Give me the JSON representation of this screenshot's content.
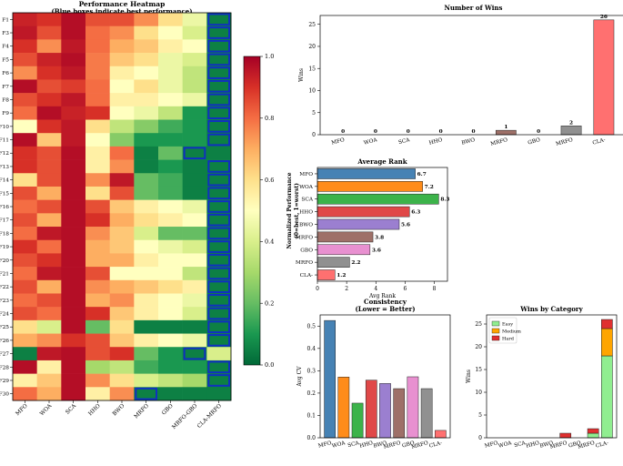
{
  "chart_data": [
    {
      "type": "heatmap",
      "title": "Performance Heatmap",
      "subtitle": "(Blue boxes indicate best performance)",
      "rows": [
        "F1",
        "F3",
        "F4",
        "F5",
        "F6",
        "F7",
        "F8",
        "F9",
        "F10",
        "F11",
        "F12",
        "F13",
        "F14",
        "F15",
        "F16",
        "F17",
        "F18",
        "F19",
        "F20",
        "F21",
        "F22",
        "F23",
        "F24",
        "F25",
        "F26",
        "F27",
        "F28",
        "F29",
        "F30"
      ],
      "columns": [
        "MFO",
        "WOA",
        "SCA",
        "HHO",
        "BWO",
        "MRFO",
        "GBO",
        "MRFO-GBO",
        "CLA-MRFO"
      ],
      "values": [
        [
          0.93,
          0.9,
          0.97,
          0.85,
          0.85,
          0.75,
          0.6,
          0.45,
          0.05
        ],
        [
          0.95,
          0.85,
          0.97,
          0.8,
          0.75,
          0.6,
          0.5,
          0.4,
          0.05
        ],
        [
          0.9,
          0.75,
          0.95,
          0.8,
          0.7,
          0.65,
          0.55,
          0.5,
          0.05
        ],
        [
          0.85,
          0.93,
          0.97,
          0.78,
          0.65,
          0.6,
          0.45,
          0.4,
          0.05
        ],
        [
          0.75,
          0.9,
          0.95,
          0.78,
          0.55,
          0.5,
          0.45,
          0.35,
          0.05
        ],
        [
          0.97,
          0.85,
          0.88,
          0.8,
          0.5,
          0.6,
          0.45,
          0.35,
          0.05
        ],
        [
          0.85,
          0.9,
          0.95,
          0.8,
          0.55,
          0.55,
          0.5,
          0.45,
          0.05
        ],
        [
          0.8,
          0.97,
          0.93,
          0.9,
          0.5,
          0.45,
          0.35,
          0.1,
          0.05
        ],
        [
          0.5,
          0.9,
          0.95,
          0.6,
          0.35,
          0.25,
          0.15,
          0.1,
          0.05
        ],
        [
          0.97,
          0.65,
          0.95,
          0.5,
          0.25,
          0.1,
          0.1,
          0.1,
          0.05
        ],
        [
          0.9,
          0.85,
          0.97,
          0.55,
          0.8,
          0.05,
          0.2,
          0.05,
          0.05
        ],
        [
          0.9,
          0.85,
          0.97,
          0.55,
          0.75,
          0.05,
          0.1,
          0.05,
          0.05
        ],
        [
          0.6,
          0.85,
          0.97,
          0.75,
          0.95,
          0.2,
          0.15,
          0.05,
          0.05
        ],
        [
          0.85,
          0.7,
          0.97,
          0.6,
          0.85,
          0.2,
          0.15,
          0.05,
          0.05
        ],
        [
          0.8,
          0.85,
          0.97,
          0.85,
          0.65,
          0.55,
          0.5,
          0.45,
          0.05
        ],
        [
          0.85,
          0.7,
          0.97,
          0.9,
          0.7,
          0.6,
          0.55,
          0.5,
          0.05
        ],
        [
          0.8,
          0.95,
          0.97,
          0.75,
          0.65,
          0.4,
          0.2,
          0.2,
          0.05
        ],
        [
          0.9,
          0.8,
          0.97,
          0.7,
          0.65,
          0.5,
          0.45,
          0.4,
          0.05
        ],
        [
          0.85,
          0.9,
          0.97,
          0.7,
          0.7,
          0.55,
          0.5,
          0.5,
          0.05
        ],
        [
          0.8,
          0.95,
          0.97,
          0.85,
          0.5,
          0.5,
          0.5,
          0.35,
          0.05
        ],
        [
          0.85,
          0.7,
          0.97,
          0.75,
          0.7,
          0.65,
          0.6,
          0.55,
          0.05
        ],
        [
          0.8,
          0.85,
          0.97,
          0.7,
          0.75,
          0.55,
          0.5,
          0.45,
          0.05
        ],
        [
          0.85,
          0.8,
          0.97,
          0.9,
          0.65,
          0.55,
          0.5,
          0.4,
          0.05
        ],
        [
          0.6,
          0.4,
          0.97,
          0.2,
          0.6,
          0.05,
          0.05,
          0.05,
          0.05
        ],
        [
          0.7,
          0.75,
          0.9,
          0.85,
          0.65,
          0.55,
          0.5,
          0.45,
          0.05
        ],
        [
          0.05,
          0.95,
          0.97,
          0.85,
          0.9,
          0.2,
          0.1,
          0.05,
          0.4
        ],
        [
          0.97,
          0.55,
          0.97,
          0.3,
          0.35,
          0.15,
          0.1,
          0.1,
          0.05
        ],
        [
          0.55,
          0.65,
          0.97,
          0.75,
          0.6,
          0.4,
          0.35,
          0.3,
          0.05
        ],
        [
          0.8,
          0.7,
          0.97,
          0.55,
          0.75,
          0.05,
          0.05,
          0.05,
          0.05
        ]
      ],
      "best_boxes": [
        [
          0,
          8
        ],
        [
          1,
          8
        ],
        [
          2,
          8
        ],
        [
          3,
          8
        ],
        [
          4,
          8
        ],
        [
          5,
          8
        ],
        [
          6,
          8
        ],
        [
          7,
          8
        ],
        [
          8,
          8
        ],
        [
          9,
          8
        ],
        [
          10,
          7
        ],
        [
          11,
          8
        ],
        [
          12,
          8
        ],
        [
          13,
          8
        ],
        [
          14,
          8
        ],
        [
          15,
          8
        ],
        [
          16,
          8
        ],
        [
          17,
          8
        ],
        [
          18,
          8
        ],
        [
          19,
          8
        ],
        [
          20,
          8
        ],
        [
          21,
          8
        ],
        [
          22,
          8
        ],
        [
          23,
          8
        ],
        [
          24,
          8
        ],
        [
          25,
          7
        ],
        [
          26,
          8
        ],
        [
          27,
          8
        ],
        [
          28,
          5
        ]
      ],
      "colorbar": {
        "label": "Normalized Performance\n(0=best, 1=worst)",
        "range": [
          0,
          1
        ],
        "ticks": [
          0.0,
          0.2,
          0.4,
          0.6,
          0.8,
          1.0
        ],
        "tick_labels": [
          "0.0",
          "0.2",
          "0.4",
          "0.6",
          "0.8",
          "1.0"
        ]
      }
    },
    {
      "type": "bar",
      "title": "Number of Wins",
      "categories": [
        "MFO",
        "WOA",
        "SCA",
        "HHO",
        "BWO",
        "MRFO",
        "GBO",
        "MRFO-GBO",
        "CLA-MRFO"
      ],
      "tick_labels": [
        "MFO",
        "WOA",
        "SCA",
        "HHO",
        "BWO",
        "MRFO",
        "GBO",
        "MRFO",
        "CLA-"
      ],
      "values": [
        0,
        0,
        0,
        0,
        0,
        1,
        0,
        2,
        26
      ],
      "data_labels": [
        "0",
        "0",
        "0",
        "0",
        "0",
        "1",
        "0",
        "2",
        "26"
      ],
      "ylabel": "Wins",
      "ylim": [
        0,
        27
      ],
      "yticks": [
        0,
        5,
        10,
        15,
        20,
        25
      ],
      "colors": [
        "#4682b4",
        "#ff8c1a",
        "#3cb34a",
        "#e04848",
        "#9b7fd0",
        "#9e7068",
        "#e890d0",
        "#909090",
        "#ff7070"
      ]
    },
    {
      "type": "bar",
      "orientation": "horizontal",
      "title": "Average Rank",
      "categories": [
        "MFO",
        "WOA",
        "SCA",
        "HHO",
        "BWO",
        "MRFO",
        "GBO",
        "MRFO",
        "CLA-"
      ],
      "values": [
        6.7,
        7.2,
        8.3,
        6.3,
        5.6,
        3.8,
        3.6,
        2.2,
        1.2
      ],
      "data_labels": [
        "6.7",
        "7.2",
        "8.3",
        "6.3",
        "5.6",
        "3.8",
        "3.6",
        "2.2",
        "1.2"
      ],
      "xlabel": "Avg Rank",
      "xlim": [
        0,
        8.9
      ],
      "xticks": [
        0,
        2,
        4,
        6,
        8
      ],
      "colors": [
        "#4682b4",
        "#ff8c1a",
        "#3cb34a",
        "#e04848",
        "#9b7fd0",
        "#9e7068",
        "#e890d0",
        "#909090",
        "#ff7070"
      ]
    },
    {
      "type": "bar",
      "title": "Consistency",
      "subtitle": "(Lower = Better)",
      "categories": [
        "MFO",
        "WOA",
        "SCA",
        "HHO",
        "BWO",
        "MRFO",
        "GBO",
        "MRFO",
        "CLA-"
      ],
      "values": [
        0.525,
        0.272,
        0.155,
        0.258,
        0.243,
        0.22,
        0.273,
        0.22,
        0.033
      ],
      "ylabel": "Avg CV",
      "ylim": [
        0,
        0.55
      ],
      "yticks": [
        0.0,
        0.1,
        0.2,
        0.3,
        0.4,
        0.5
      ],
      "ytick_labels": [
        "0.0",
        "0.1",
        "0.2",
        "0.3",
        "0.4",
        "0.5"
      ],
      "colors": [
        "#4682b4",
        "#ff8c1a",
        "#3cb34a",
        "#e04848",
        "#9b7fd0",
        "#9e7068",
        "#e890d0",
        "#909090",
        "#ff7070"
      ]
    },
    {
      "type": "bar",
      "stacked": true,
      "title": "Wins by Category",
      "categories": [
        "MFO",
        "WOA",
        "SCA",
        "HHO",
        "BWO",
        "MRFO",
        "GBO",
        "MRFO",
        "CLA-"
      ],
      "series": [
        {
          "name": "Easy",
          "color": "#90ee90",
          "values": [
            0,
            0,
            0,
            0,
            0,
            0,
            0,
            1,
            18
          ]
        },
        {
          "name": "Medium",
          "color": "#ffa500",
          "values": [
            0,
            0,
            0,
            0,
            0,
            0,
            0,
            0,
            6
          ]
        },
        {
          "name": "Hard",
          "color": "#e03030",
          "values": [
            0,
            0,
            0,
            0,
            0,
            1,
            0,
            1,
            2
          ]
        }
      ],
      "ylabel": "Wins",
      "ylim": [
        0,
        27
      ],
      "yticks": [
        0,
        5,
        10,
        15,
        20,
        25
      ],
      "legend": "top-left"
    }
  ]
}
